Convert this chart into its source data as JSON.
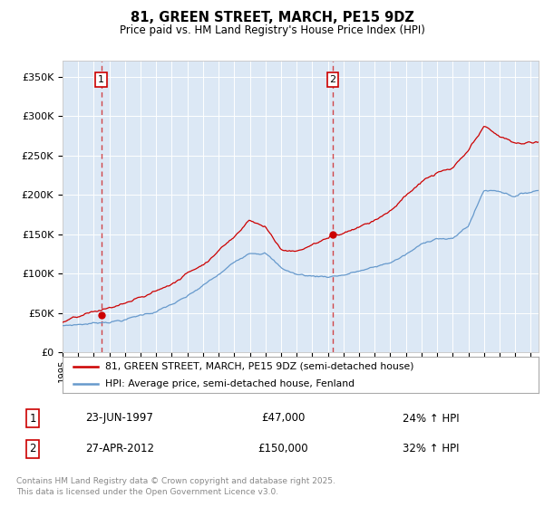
{
  "title": "81, GREEN STREET, MARCH, PE15 9DZ",
  "subtitle": "Price paid vs. HM Land Registry's House Price Index (HPI)",
  "ylabel_ticks": [
    "£0",
    "£50K",
    "£100K",
    "£150K",
    "£200K",
    "£250K",
    "£300K",
    "£350K"
  ],
  "ytick_vals": [
    0,
    50000,
    100000,
    150000,
    200000,
    250000,
    300000,
    350000
  ],
  "ylim": [
    0,
    370000
  ],
  "xlim_start": 1995.0,
  "xlim_end": 2025.5,
  "purchase1_x": 1997.47,
  "purchase1_y": 47000,
  "purchase2_x": 2012.32,
  "purchase2_y": 150000,
  "purchase1_date": "23-JUN-1997",
  "purchase1_price": "£47,000",
  "purchase1_hpi": "24% ↑ HPI",
  "purchase2_date": "27-APR-2012",
  "purchase2_price": "£150,000",
  "purchase2_hpi": "32% ↑ HPI",
  "line_color_property": "#cc0000",
  "line_color_hpi": "#6699cc",
  "marker_color": "#cc0000",
  "dashed_line_color": "#cc0000",
  "legend_label_property": "81, GREEN STREET, MARCH, PE15 9DZ (semi-detached house)",
  "legend_label_hpi": "HPI: Average price, semi-detached house, Fenland",
  "footer": "Contains HM Land Registry data © Crown copyright and database right 2025.\nThis data is licensed under the Open Government Licence v3.0.",
  "background_color": "#dce8f5",
  "xtick_years": [
    1995,
    1996,
    1997,
    1998,
    1999,
    2000,
    2001,
    2002,
    2003,
    2004,
    2005,
    2006,
    2007,
    2008,
    2009,
    2010,
    2011,
    2012,
    2013,
    2014,
    2015,
    2016,
    2017,
    2018,
    2019,
    2020,
    2021,
    2022,
    2023,
    2024,
    2025
  ]
}
